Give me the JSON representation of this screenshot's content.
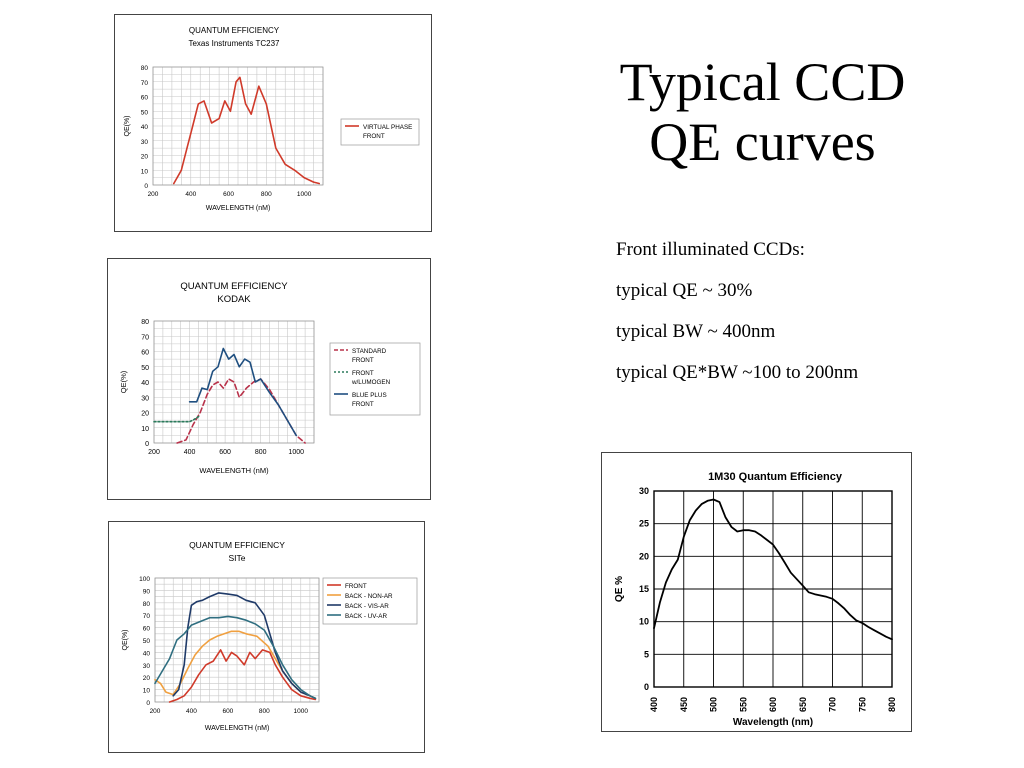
{
  "slide": {
    "title_line1": "Typical CCD",
    "title_line2": "QE curves",
    "bullets": [
      "Front illuminated CCDs:",
      "typical QE ~ 30%",
      "typical BW ~ 400nm",
      "typical QE*BW ~100 to 200nm"
    ]
  },
  "chart_data": [
    {
      "type": "line",
      "title": "QUANTUM EFFICIENCY",
      "subtitle": "Texas Instruments TC237",
      "xlabel": "WAVELENGTH (nM)",
      "ylabel": "QE(%)",
      "xlim": [
        200,
        1100
      ],
      "ylim": [
        0,
        80
      ],
      "xticks": [
        200,
        400,
        600,
        800,
        1000
      ],
      "yticks": [
        0,
        10,
        20,
        30,
        40,
        50,
        60,
        70,
        80
      ],
      "grid": true,
      "legend_position": "right",
      "series": [
        {
          "name": "VIRTUAL PHASE FRONT",
          "color": "#d03a2a",
          "x": [
            310,
            350,
            380,
            410,
            440,
            470,
            510,
            550,
            580,
            610,
            640,
            660,
            690,
            720,
            760,
            800,
            850,
            900,
            950,
            1000,
            1050,
            1080
          ],
          "y": [
            1,
            10,
            25,
            40,
            55,
            57,
            42,
            45,
            57,
            50,
            70,
            73,
            55,
            48,
            67,
            55,
            25,
            14,
            10,
            5,
            2,
            1
          ]
        }
      ]
    },
    {
      "type": "line",
      "title": "QUANTUM EFFICIENCY",
      "subtitle": "KODAK",
      "xlabel": "WAVELENGTH (nM)",
      "ylabel": "QE(%)",
      "xlim": [
        200,
        1100
      ],
      "ylim": [
        0,
        80
      ],
      "xticks": [
        200,
        400,
        600,
        800,
        1000
      ],
      "yticks": [
        0,
        10,
        20,
        30,
        40,
        50,
        60,
        70,
        80
      ],
      "grid": true,
      "legend_position": "right",
      "series": [
        {
          "name": "STANDARD FRONT",
          "color": "#b8324a",
          "dash": "dash",
          "x": [
            330,
            380,
            420,
            460,
            500,
            530,
            560,
            590,
            620,
            650,
            680,
            720,
            760,
            800,
            850,
            900,
            950,
            1000,
            1050
          ],
          "y": [
            0,
            2,
            12,
            20,
            32,
            38,
            40,
            36,
            42,
            40,
            30,
            36,
            40,
            42,
            35,
            25,
            15,
            5,
            0
          ]
        },
        {
          "name": "FRONT w/LUMOGEN",
          "color": "#2c7a5c",
          "dash": "dot",
          "x": [
            200,
            400,
            420,
            460
          ],
          "y": [
            14,
            14,
            15,
            18
          ]
        },
        {
          "name": "BLUE PLUS FRONT",
          "color": "#1f4f80",
          "x": [
            400,
            440,
            470,
            500,
            530,
            560,
            590,
            620,
            650,
            680,
            710,
            740,
            770,
            800,
            850,
            900,
            950,
            1000
          ],
          "y": [
            27,
            27,
            36,
            35,
            47,
            50,
            62,
            55,
            58,
            50,
            55,
            53,
            40,
            42,
            33,
            25,
            15,
            5
          ]
        }
      ]
    },
    {
      "type": "line",
      "title": "QUANTUM EFFICIENCY",
      "subtitle": "SITe",
      "xlabel": "WAVELENGTH (nM)",
      "ylabel": "QE(%)",
      "xlim": [
        200,
        1100
      ],
      "ylim": [
        0,
        100
      ],
      "xticks": [
        200,
        400,
        600,
        800,
        1000
      ],
      "yticks": [
        0,
        10,
        20,
        30,
        40,
        50,
        60,
        70,
        80,
        90,
        100
      ],
      "grid": true,
      "legend_position": "right",
      "series": [
        {
          "name": "FRONT",
          "color": "#d03a2a",
          "x": [
            280,
            320,
            360,
            400,
            440,
            480,
            520,
            560,
            590,
            620,
            650,
            690,
            720,
            750,
            790,
            830,
            860,
            900,
            950,
            1000,
            1050,
            1080
          ],
          "y": [
            0,
            2,
            5,
            12,
            22,
            30,
            33,
            42,
            33,
            40,
            37,
            30,
            40,
            35,
            42,
            40,
            30,
            20,
            10,
            5,
            3,
            2
          ]
        },
        {
          "name": "BACK - NON-AR",
          "color": "#f0a040",
          "x": [
            200,
            230,
            260,
            300,
            340,
            380,
            420,
            460,
            500,
            540,
            580,
            620,
            660,
            700,
            760,
            820,
            860,
            900,
            950,
            1000,
            1050,
            1080
          ],
          "y": [
            18,
            15,
            8,
            6,
            15,
            27,
            38,
            45,
            50,
            53,
            55,
            57,
            57,
            55,
            53,
            45,
            35,
            25,
            15,
            8,
            5,
            3
          ]
        },
        {
          "name": "BACK - VIS-AR",
          "color": "#1f3a68",
          "x": [
            300,
            330,
            360,
            380,
            400,
            430,
            460,
            500,
            550,
            600,
            650,
            700,
            750,
            800,
            830,
            860,
            900,
            950,
            1000,
            1050,
            1080
          ],
          "y": [
            5,
            10,
            30,
            60,
            78,
            81,
            82,
            85,
            88,
            87,
            86,
            82,
            80,
            70,
            55,
            40,
            25,
            15,
            8,
            5,
            3
          ]
        },
        {
          "name": "BACK - UV-AR",
          "color": "#2f6e80",
          "x": [
            200,
            240,
            280,
            320,
            360,
            400,
            450,
            500,
            550,
            600,
            650,
            700,
            750,
            800,
            850,
            900,
            950,
            1000,
            1050,
            1080
          ],
          "y": [
            15,
            25,
            35,
            50,
            55,
            62,
            65,
            68,
            68,
            69,
            68,
            66,
            63,
            58,
            45,
            30,
            18,
            10,
            5,
            3
          ]
        }
      ]
    },
    {
      "type": "line",
      "title": "1M30 Quantum Efficiency",
      "xlabel": "Wavelength (nm)",
      "ylabel": "QE %",
      "xlim": [
        400,
        800
      ],
      "ylim": [
        0,
        30
      ],
      "xticks": [
        400,
        450,
        500,
        550,
        600,
        650,
        700,
        750,
        800
      ],
      "yticks": [
        0,
        5,
        10,
        15,
        20,
        25,
        30
      ],
      "grid": true,
      "series": [
        {
          "color": "#000000",
          "x": [
            400,
            410,
            420,
            430,
            440,
            450,
            460,
            470,
            480,
            490,
            500,
            510,
            520,
            530,
            540,
            550,
            560,
            570,
            580,
            590,
            600,
            610,
            620,
            630,
            640,
            650,
            660,
            670,
            680,
            690,
            700,
            710,
            720,
            730,
            740,
            750,
            760,
            770,
            780,
            790,
            800
          ],
          "y": [
            9,
            13,
            16,
            18,
            19.5,
            23,
            25.5,
            27,
            28,
            28.5,
            28.7,
            28.3,
            26,
            24.5,
            23.8,
            24,
            24,
            23.8,
            23.2,
            22.5,
            21.8,
            20.5,
            19,
            17.5,
            16.5,
            15.5,
            14.5,
            14.2,
            14,
            13.8,
            13.5,
            12.8,
            12,
            11,
            10.2,
            9.8,
            9.2,
            8.7,
            8.2,
            7.7,
            7.3
          ]
        }
      ]
    }
  ]
}
